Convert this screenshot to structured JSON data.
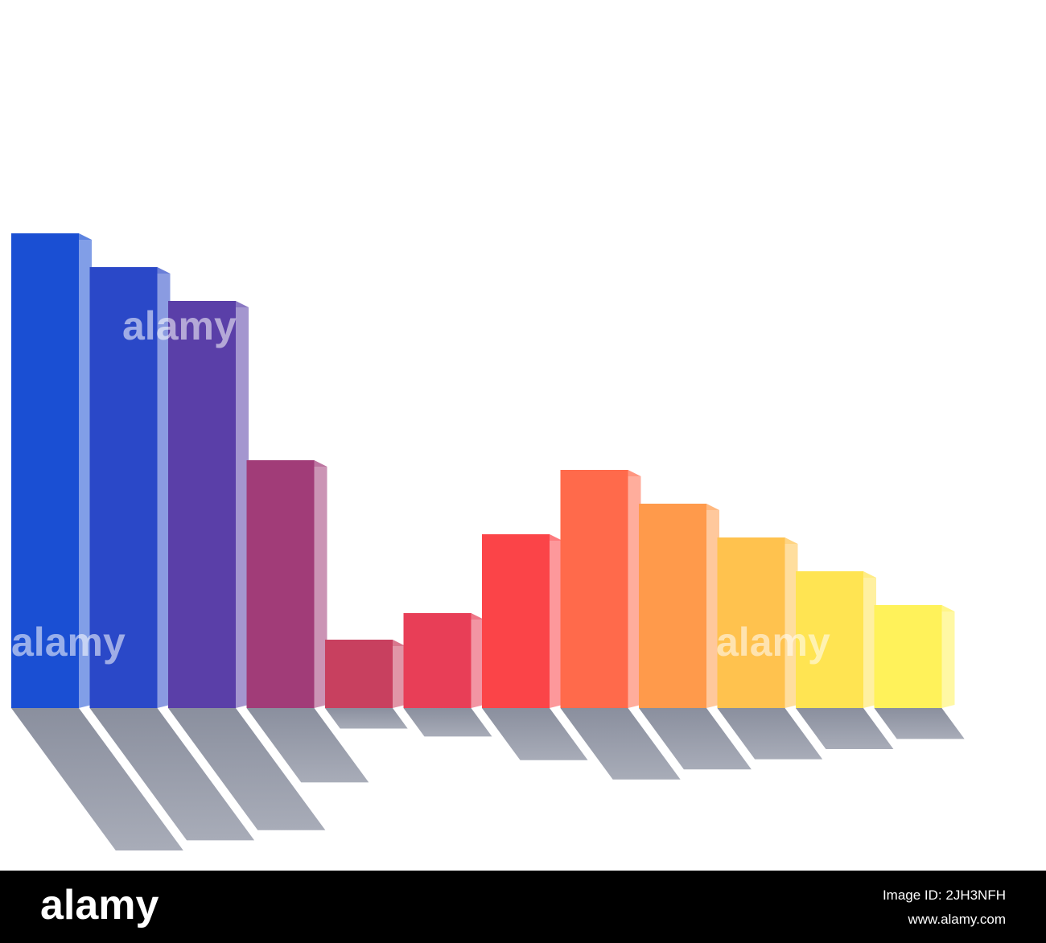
{
  "chart_data": {
    "type": "bar",
    "values": [
      590,
      548,
      506,
      308,
      85,
      118,
      216,
      296,
      254,
      212,
      170,
      128
    ],
    "colors": [
      "#1a4fd3",
      "#2a48c8",
      "#5a3fa8",
      "#a13c78",
      "#c8405f",
      "#e83e57",
      "#fb4448",
      "#ff6a4b",
      "#ff9a4b",
      "#ffc24e",
      "#ffe452",
      "#fff25a"
    ],
    "ylim": [
      0,
      600
    ]
  },
  "watermark": "alamy",
  "banner": {
    "logo": "alamy",
    "image_id": "Image ID: 2JH3NFH",
    "url": "www.alamy.com"
  }
}
